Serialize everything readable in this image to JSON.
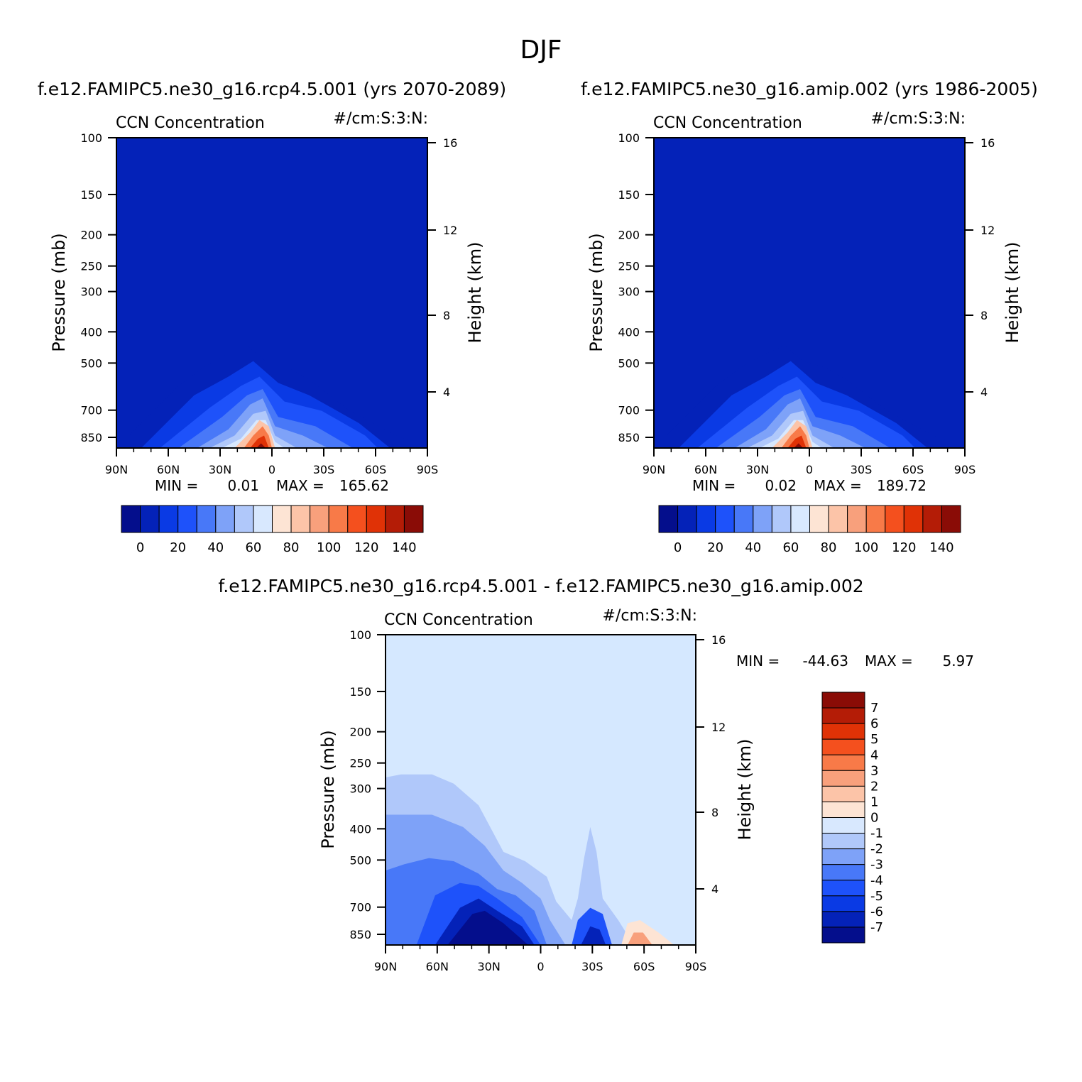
{
  "title": "DJF",
  "colors": {
    "ref_field": "#0422b8",
    "diff_field": "#d5e8ff",
    "ref_palette": [
      "#040e8c",
      "#0422b8",
      "#0a3ae4",
      "#1e52fa",
      "#4878f8",
      "#7ea2f8",
      "#b0c8fa",
      "#d8e8fe",
      "#fde4d4",
      "#fcc4a8",
      "#f8a07c",
      "#f87a48",
      "#f4501e",
      "#e03206",
      "#b41c06",
      "#8a0c06"
    ],
    "diff_palette": [
      "#040e8c",
      "#0422b8",
      "#0a3ae4",
      "#1e52fa",
      "#4878f8",
      "#7ea2f8",
      "#b0c8fa",
      "#d8e8fe",
      "#fde4d4",
      "#fcc4a8",
      "#f8a07c",
      "#f87a48",
      "#f4501e",
      "#e03206",
      "#b41c06",
      "#8a0c06"
    ]
  },
  "chart_data": [
    {
      "type": "heatmap",
      "title": "f.e12.FAMIPC5.ne30_g16.rcp4.5.001 (yrs 2070-2089)",
      "variable_label": "CCN Concentration",
      "units": "#/cm:S:3:N:",
      "xlabel": "",
      "ylabel": "Pressure (mb)",
      "ylabel_right": "Height (km)",
      "x_ticks": [
        "90N",
        "60N",
        "30N",
        "0",
        "30S",
        "60S",
        "90S"
      ],
      "y_ticks": [
        100,
        150,
        200,
        250,
        300,
        400,
        500,
        700,
        850
      ],
      "y_ticks_right": [
        16,
        12,
        8,
        4
      ],
      "ylim": [
        100,
        1000
      ],
      "min_label": "MIN =",
      "min_value": "0.01",
      "max_label": "MAX =",
      "max_value": "165.62",
      "colorbar": {
        "orientation": "horizontal",
        "labels": [
          "0",
          "20",
          "40",
          "60",
          "80",
          "100",
          "120",
          "140"
        ]
      }
    },
    {
      "type": "heatmap",
      "title": "f.e12.FAMIPC5.ne30_g16.amip.002 (yrs 1986-2005)",
      "variable_label": "CCN Concentration",
      "units": "#/cm:S:3:N:",
      "xlabel": "",
      "ylabel": "Pressure (mb)",
      "ylabel_right": "Height (km)",
      "x_ticks": [
        "90N",
        "60N",
        "30N",
        "0",
        "30S",
        "60S",
        "90S"
      ],
      "y_ticks": [
        100,
        150,
        200,
        250,
        300,
        400,
        500,
        700,
        850
      ],
      "y_ticks_right": [
        16,
        12,
        8,
        4
      ],
      "ylim": [
        100,
        1000
      ],
      "min_label": "MIN =",
      "min_value": "0.02",
      "max_label": "MAX =",
      "max_value": "189.72",
      "colorbar": {
        "orientation": "horizontal",
        "labels": [
          "0",
          "20",
          "40",
          "60",
          "80",
          "100",
          "120",
          "140"
        ]
      }
    },
    {
      "type": "heatmap",
      "title": "f.e12.FAMIPC5.ne30_g16.rcp4.5.001 - f.e12.FAMIPC5.ne30_g16.amip.002",
      "variable_label": "CCN Concentration",
      "units": "#/cm:S:3:N:",
      "xlabel": "",
      "ylabel": "Pressure (mb)",
      "ylabel_right": "Height (km)",
      "x_ticks": [
        "90N",
        "60N",
        "30N",
        "0",
        "30S",
        "60S",
        "90S"
      ],
      "y_ticks": [
        100,
        150,
        200,
        250,
        300,
        400,
        500,
        700,
        850
      ],
      "y_ticks_right": [
        16,
        12,
        8,
        4
      ],
      "ylim": [
        100,
        1000
      ],
      "min_label": "MIN =",
      "min_value": "-44.63",
      "max_label": "MAX =",
      "max_value": "5.97",
      "colorbar": {
        "orientation": "vertical",
        "labels": [
          "7",
          "6",
          "5",
          "4",
          "3",
          "2",
          "1",
          "0",
          "-1",
          "-2",
          "-3",
          "-4",
          "-5",
          "-6",
          "-7"
        ]
      }
    }
  ]
}
